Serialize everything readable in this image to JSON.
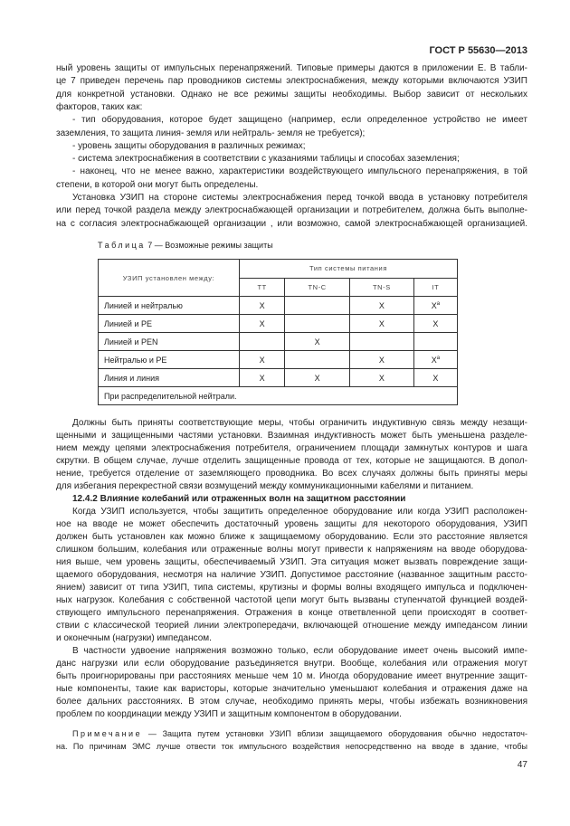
{
  "header": {
    "standard": "ГОСТ Р 55630—2013"
  },
  "blocks": [
    {
      "top": 0,
      "lines": [
        {
          "t": "ный уровень защиты от импульсных  перенапряжений.  Типовые примеры даются в приложении Е. В табли-"
        },
        {
          "t": "це  7 приведен перечень пар проводников системы электроснабжения, между которыми включаются УЗИП"
        },
        {
          "t": "для конкретной установки. Однако не все  режимы защиты  необходимы. Выбор зависит от нескольких"
        },
        {
          "t": "факторов, таких как:",
          "last": true
        },
        {
          "t": "- тип оборудования, которое будет защищено (например, если определенное устройство не имеет",
          "ind": true
        },
        {
          "t": "заземления, то защита линия- земля или нейтраль- земля не требуется);",
          "last": true
        },
        {
          "t": "- уровень защиты оборудования в различных режимах;",
          "ind": true,
          "last": true
        },
        {
          "t": "- система электроснабжения в соответствии с указаниями таблицы и способах заземления;",
          "ind": true,
          "last": true
        },
        {
          "t": "- наконец, что не менее важно, характеристики воздействующего импульсного перенапряжения, в той",
          "ind": true
        },
        {
          "t": "степени, в которой они могут быть определены.",
          "last": true
        },
        {
          "t": "Установка УЗИП на стороне системы электроснабжения перед точкой ввода в установку потребителя",
          "ind": true
        },
        {
          "t": "или перед точкой раздела  между электроснабжающей организации и потребителем, должна быть выполне-"
        },
        {
          "t": "на с согласия электроснабжающей организации , или возможно, самой электроснабжающей организацией."
        }
      ]
    },
    {
      "top": 1,
      "lines": [
        {
          "t": "Должны быть приняты соответствующие меры, чтобы ограничить индуктивную связь между незащи-",
          "ind": true
        },
        {
          "t": "щенными и защищенными частями установки. Взаимная индуктивность может быть уменьшена разделе-"
        },
        {
          "t": "нием между цепями электроснабжения потребителя, ограничением площади замкнутых контуров и шага"
        },
        {
          "t": "скрутки. В общем случае, лучше отделить защищенные провода от тех, которые не защищаются. В допол-"
        },
        {
          "t": "нение, требуется отделение  от заземляющего проводника. Во всех случаях должны быть приняты меры"
        },
        {
          "t": "для избегания перекрестной связи возмущений между коммуникационными кабелями и питанием.",
          "last": true
        },
        {
          "t": "12.4.2 Влияние колебаний или отраженных волн на защитном расстоянии",
          "ind": true,
          "last": true,
          "bold": true
        },
        {
          "t": "Когда УЗИП используется, чтобы защитить определенное оборудование или когда УЗИП расположен-",
          "ind": true
        },
        {
          "t": "ное на вводе не может обеспечить достаточный уровень защиты для некоторого оборудования, УЗИП"
        },
        {
          "t": "должен быть установлен как можно ближе к защищаемому оборудованию. Если это расстояние является"
        },
        {
          "t": "слишком большим, колебания или отраженные волны могут привести к напряжениям на вводе оборудова-"
        },
        {
          "t": "ния выше, чем уровень защиты, обеспечиваемый УЗИП. Эта ситуация может вызвать повреждение защи-"
        },
        {
          "t": "щаемого оборудования, несмотря на наличие УЗИП. Допустимое расстояние (названное защитным рассто-"
        },
        {
          "t": "янием) зависит от типа УЗИП, типа системы, крутизны и формы волны входящего импульса и подключен-"
        },
        {
          "t": "ных нагрузок. Колебания с собственной частотой цепи могут быть вызваны ступенчатой функцией воздей-"
        },
        {
          "t": "ствующего импульсного перенапряжения. Отражения в конце ответвленной цепи происходят в соответ-"
        },
        {
          "t": "ствии с классической теорией линии электропередачи, включающей отношение между импедансом линии"
        },
        {
          "t": "и оконечным (нагрузки) импедансом.",
          "last": true
        },
        {
          "t": "В частности удвоение напряжения возможно только, если оборудование имеет очень высокий импе-",
          "ind": true
        },
        {
          "t": "данс нагрузки или если оборудование разъединяется внутри. Вообще, колебания или отражения могут"
        },
        {
          "t": "быть проигнорированы при расстояниях меньше чем 10 м. Иногда оборудование имеет внутренние защит-"
        },
        {
          "t": "ные компоненты, такие как варисторы, которые значительно уменьшают колебания и отражения даже на"
        },
        {
          "t": "более дальних расстояниях. В этом случае, необходимо принять меры, чтобы избежать возникновения"
        },
        {
          "t": "проблем по координации между УЗИП и защитным компонентом в оборудовании.",
          "last": true
        }
      ]
    }
  ],
  "note": {
    "label": "Примечание",
    "line1": " — Защита путем установки УЗИП вблизи защищаемого оборудования обычно недостаточ-",
    "line2": "на. По причинам ЭМС лучше отвести  ток импульсного воздействия непосредственно на вводе в здание, чтобы"
  },
  "table": {
    "caption_label": "Таблица",
    "caption_rest": " 7 — Возможные режимы защиты",
    "corner": "УЗИП установлен между:",
    "group": "Тип системы питания",
    "columns": [
      "TT",
      "TN-C",
      "TN-S",
      "IT"
    ],
    "rows": [
      {
        "label": "Линией и нейтралью",
        "cells": [
          "X",
          "",
          "X",
          "X"
        ],
        "sup": [
          "",
          "",
          "",
          "a"
        ]
      },
      {
        "label": "Линией и PE",
        "cells": [
          "X",
          "",
          "X",
          "X"
        ],
        "sup": [
          "",
          "",
          "",
          ""
        ]
      },
      {
        "label": "Линией и PEN",
        "cells": [
          "",
          "X",
          "",
          ""
        ],
        "sup": [
          "",
          "",
          "",
          ""
        ]
      },
      {
        "label": "Нейтралью и PE",
        "cells": [
          "X",
          "",
          "X",
          "X"
        ],
        "sup": [
          "",
          "",
          "",
          "a"
        ]
      },
      {
        "label": "Линия и линия",
        "cells": [
          "X",
          "X",
          "X",
          "X"
        ],
        "sup": [
          "",
          "",
          "",
          ""
        ]
      }
    ],
    "footnote": "При распределительной нейтрали."
  },
  "page_number": "47"
}
